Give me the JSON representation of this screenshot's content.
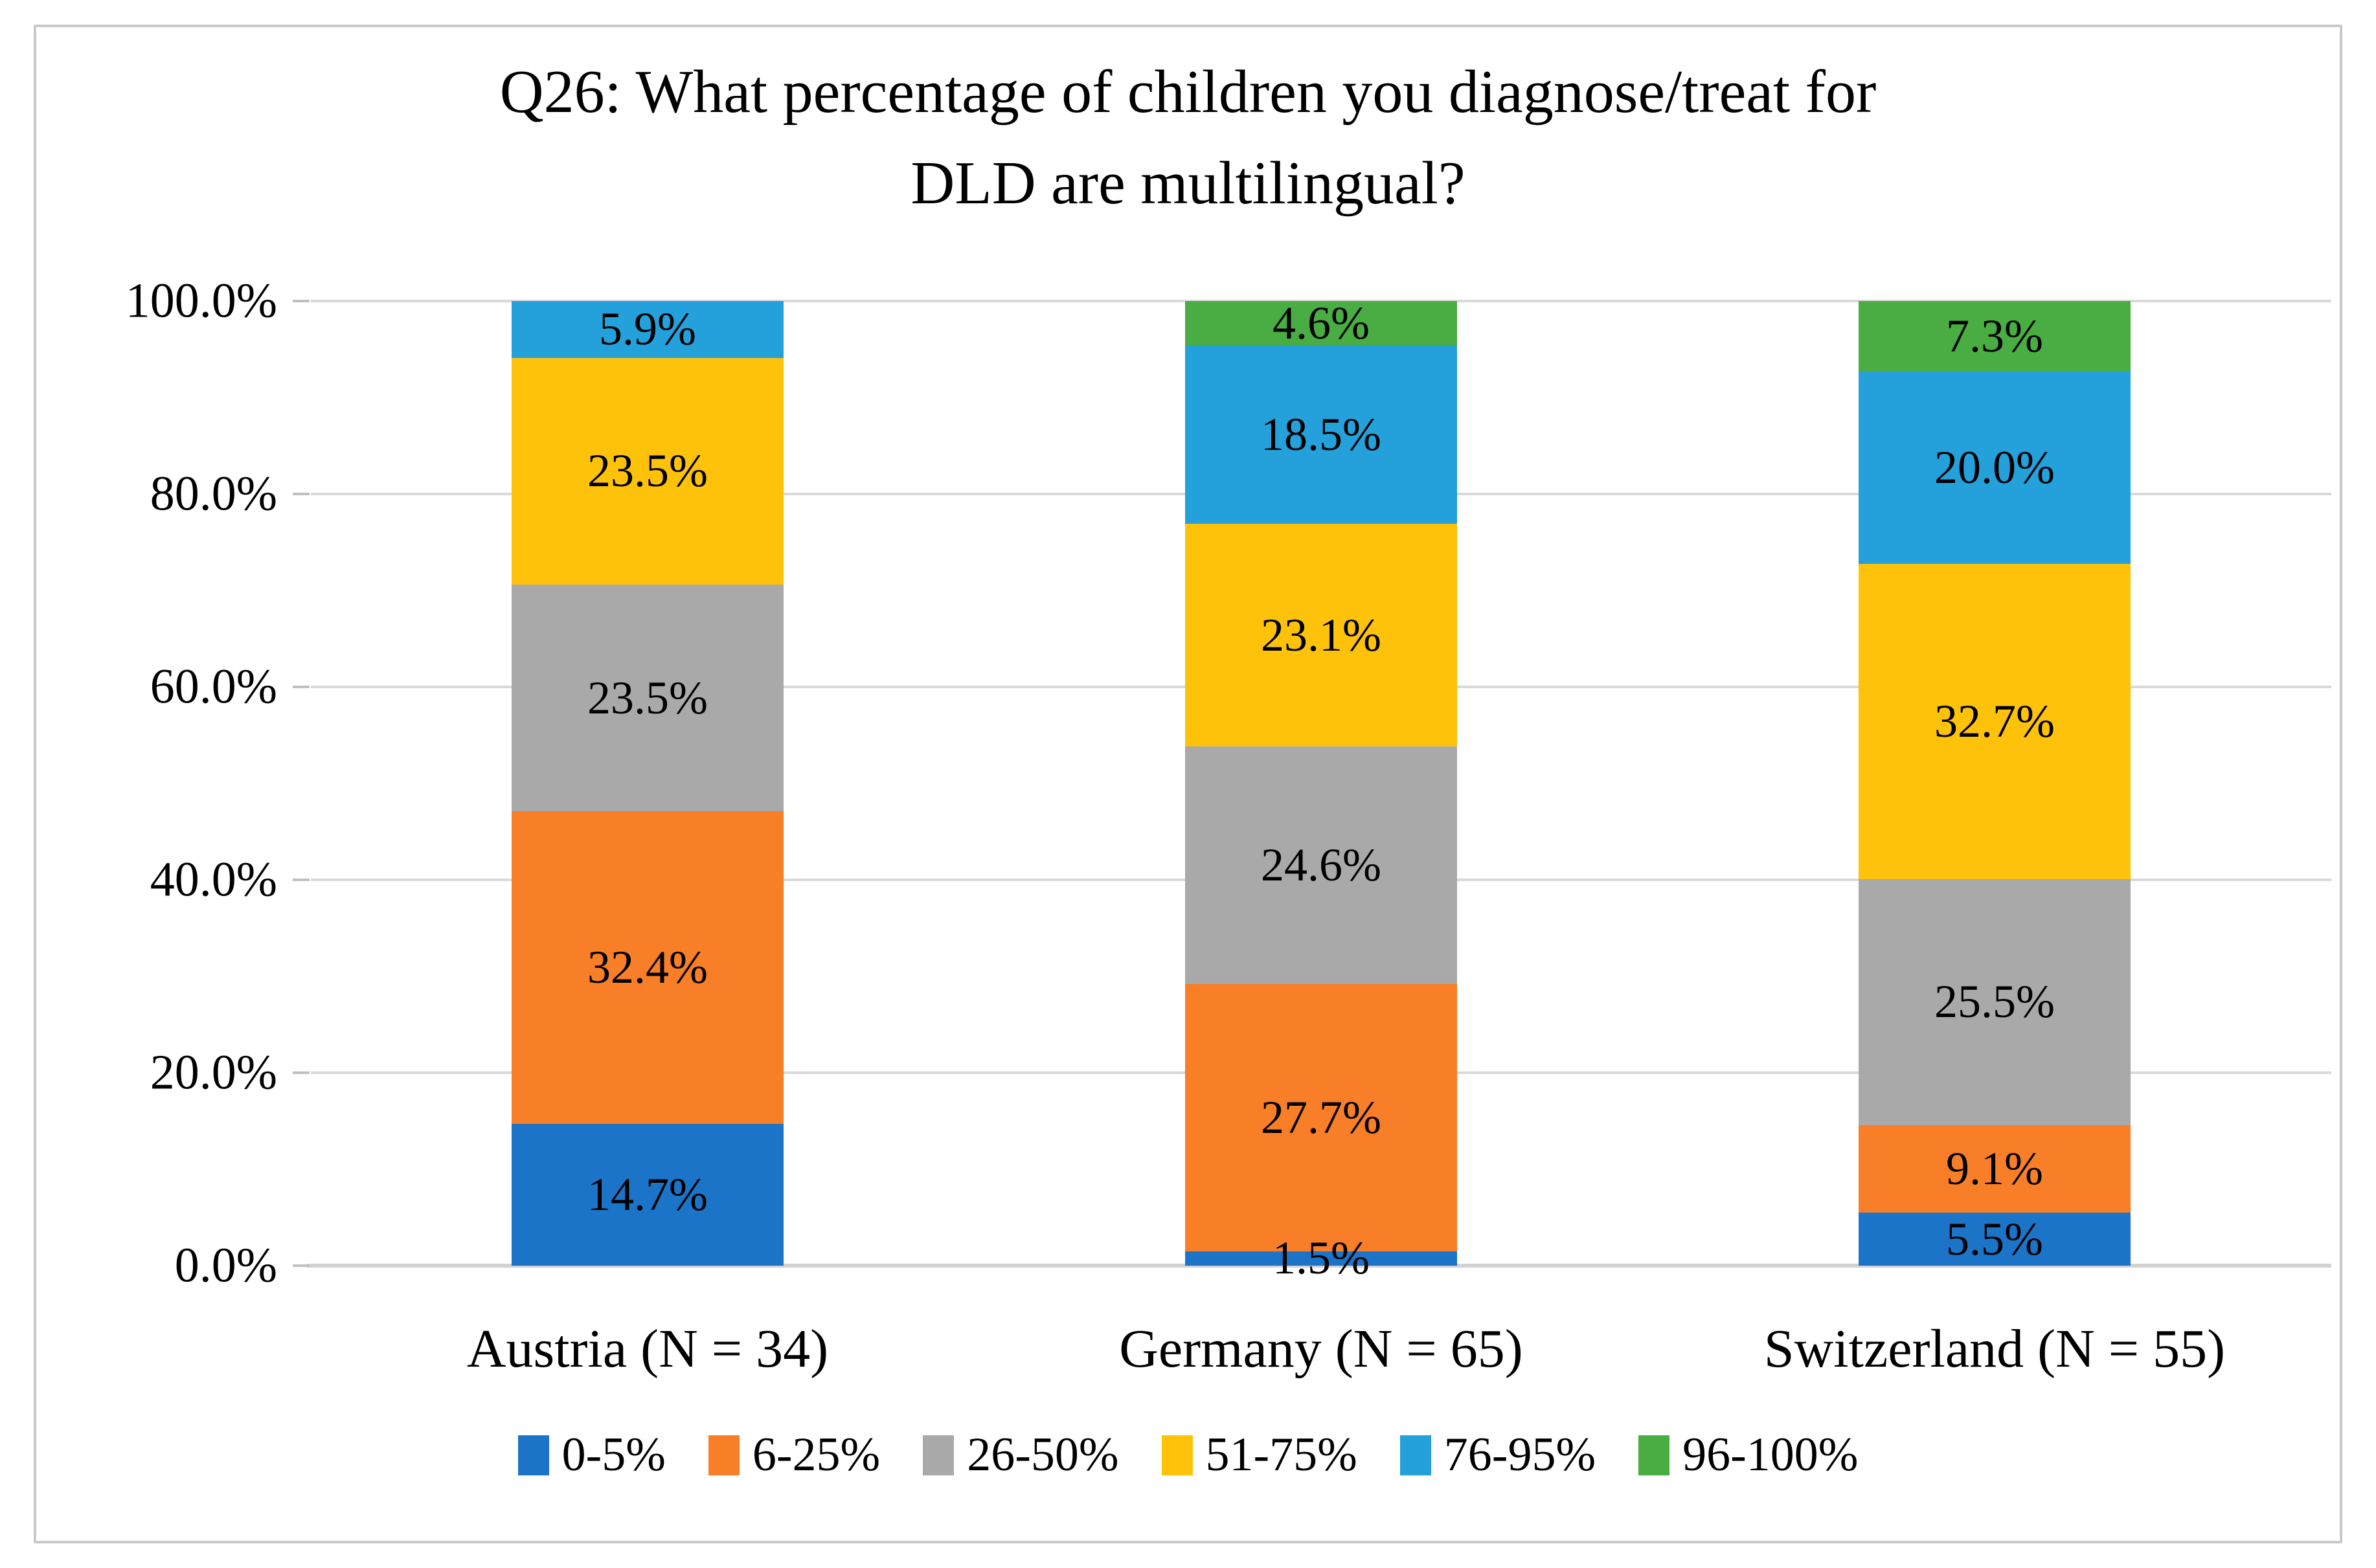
{
  "title": {
    "line1": "Q26: What percentage of children you diagnose/treat for",
    "line2": "DLD are multilingual?"
  },
  "chart_data": {
    "type": "bar",
    "stacked": true,
    "orientation": "vertical",
    "title": "Q26: What percentage of children you diagnose/treat for DLD are multilingual?",
    "categories": [
      "Austria (N = 34)",
      "Germany (N = 65)",
      "Switzerland (N = 55)"
    ],
    "series": [
      {
        "name": "0-5%",
        "color": "#1B74C8",
        "values": [
          14.7,
          1.5,
          5.5
        ],
        "labels": [
          "14.7%",
          "1.5%",
          "5.5%"
        ]
      },
      {
        "name": "6-25%",
        "color": "#F87E28",
        "values": [
          32.4,
          27.7,
          9.1
        ],
        "labels": [
          "32.4%",
          "27.7%",
          "9.1%"
        ]
      },
      {
        "name": "26-50%",
        "color": "#A9A9A9",
        "values": [
          23.5,
          24.6,
          25.5
        ],
        "labels": [
          "23.5%",
          "24.6%",
          "25.5%"
        ]
      },
      {
        "name": "51-75%",
        "color": "#FEC20B",
        "values": [
          23.5,
          23.1,
          32.7
        ],
        "labels": [
          "23.5%",
          "23.1%",
          "32.7%"
        ]
      },
      {
        "name": "76-95%",
        "color": "#24A0DA",
        "values": [
          5.9,
          18.5,
          20.0
        ],
        "labels": [
          "5.9%",
          "18.5%",
          "20.0%"
        ]
      },
      {
        "name": "96-100%",
        "color": "#49AD43",
        "values": [
          0,
          4.6,
          7.3
        ],
        "labels": [
          "",
          "4.6%",
          "7.3%"
        ]
      }
    ],
    "yaxis": {
      "min": 0,
      "max": 100,
      "ticks": [
        "0.0%",
        "20.0%",
        "40.0%",
        "60.0%",
        "80.0%",
        "100.0%"
      ],
      "gridlines": true
    },
    "legend_position": "bottom"
  },
  "colors": {
    "gridline": "#D9D9D9",
    "axis_line": "#D2D2D2",
    "tick_mark": "#C0C0C0",
    "frame_border": "#C9C9C9",
    "text": "#000000",
    "background": "#FFFFFF"
  }
}
